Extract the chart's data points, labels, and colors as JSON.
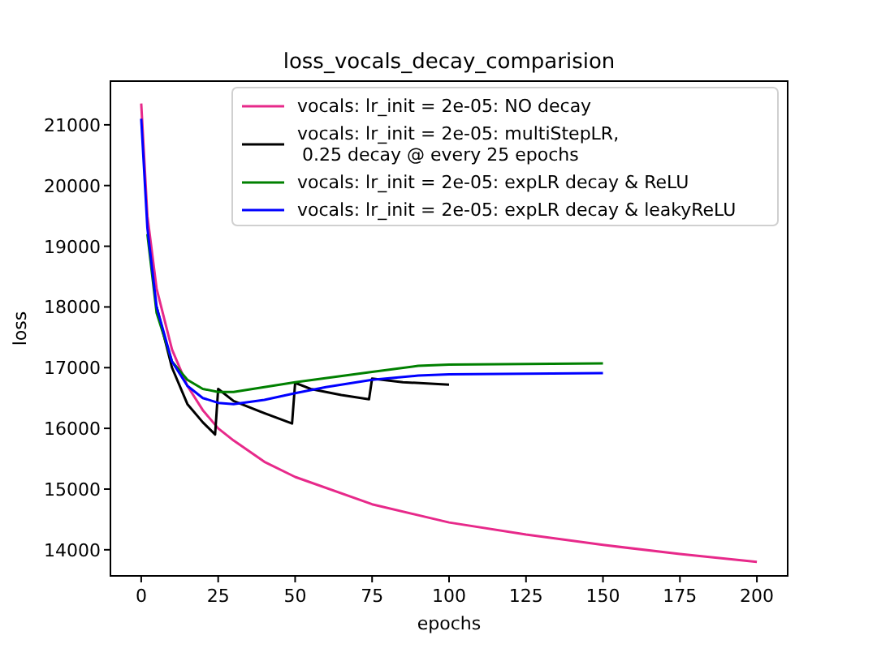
{
  "chart_data": {
    "type": "line",
    "title": "loss_vocals_decay_comparision",
    "xlabel": "epochs",
    "ylabel": "loss",
    "xlim": [
      -10,
      210
    ],
    "ylim": [
      13570,
      21720
    ],
    "xticks": [
      0,
      25,
      50,
      75,
      100,
      125,
      150,
      175,
      200
    ],
    "yticks": [
      14000,
      15000,
      16000,
      17000,
      18000,
      19000,
      20000,
      21000
    ],
    "grid": false,
    "legend": "top right",
    "series": [
      {
        "name": "vocals: lr_init = 2e-05: NO decay",
        "color": "#e7298a",
        "x": [
          0,
          2,
          5,
          10,
          15,
          20,
          25,
          30,
          40,
          50,
          75,
          100,
          125,
          150,
          175,
          200
        ],
        "values": [
          21350,
          19500,
          18300,
          17300,
          16700,
          16300,
          16000,
          15800,
          15450,
          15200,
          14750,
          14450,
          14250,
          14080,
          13930,
          13800
        ]
      },
      {
        "name": "vocals: lr_init = 2e-05: multiStepLR,\n0.25 decay @ every 25 epochs",
        "color": "#000000",
        "x": [
          5,
          10,
          15,
          20,
          24,
          25,
          30,
          40,
          49,
          50,
          55,
          65,
          74,
          75,
          85,
          100
        ],
        "values": [
          18000,
          17000,
          16400,
          16100,
          15900,
          16650,
          16450,
          16250,
          16080,
          16750,
          16650,
          16550,
          16480,
          16820,
          16760,
          16720
        ]
      },
      {
        "name": "vocals: lr_init = 2e-05: expLR decay & ReLU",
        "color": "#008000",
        "x": [
          2,
          5,
          10,
          15,
          20,
          25,
          30,
          40,
          50,
          75,
          90,
          100,
          125,
          150
        ],
        "values": [
          19200,
          17900,
          17100,
          16800,
          16650,
          16600,
          16600,
          16680,
          16760,
          16930,
          17030,
          17050,
          17060,
          17070
        ]
      },
      {
        "name": "vocals: lr_init = 2e-05: expLR decay & leakyReLU",
        "color": "#0000ff",
        "x": [
          0,
          2,
          5,
          10,
          15,
          20,
          25,
          30,
          40,
          50,
          60,
          75,
          90,
          100,
          125,
          150
        ],
        "values": [
          21100,
          19300,
          18000,
          17100,
          16700,
          16500,
          16420,
          16400,
          16470,
          16580,
          16680,
          16800,
          16870,
          16890,
          16900,
          16910
        ]
      }
    ]
  }
}
